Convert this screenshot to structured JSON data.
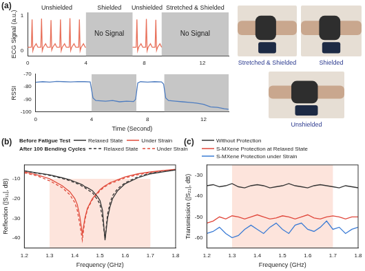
{
  "chart_data": [
    {
      "type": "line",
      "panel": "(a)",
      "y_label": "ECG Signal (a.u.)",
      "color": "#e8705a",
      "x": [
        0,
        0.25,
        0.3,
        0.35,
        0.42,
        0.58,
        0.7,
        0.9,
        0.95,
        1.0,
        1.07,
        1.23,
        1.35,
        1.55,
        1.6,
        1.65,
        1.72,
        1.88,
        2.0,
        2.2,
        2.25,
        2.3,
        2.37,
        2.53,
        2.65,
        2.85,
        2.9,
        2.95,
        3.02,
        3.18,
        3.3,
        3.5,
        3.55,
        3.6,
        3.67,
        3.83,
        3.95,
        4.0,
        5.6,
        7.2,
        7.45,
        7.5,
        7.55,
        7.62,
        7.78,
        7.9,
        8.1,
        8.15,
        8.2,
        8.27,
        8.43,
        8.55,
        8.75,
        8.8,
        8.85,
        8.92,
        9.08,
        9.2
      ],
      "values": [
        0.1,
        0.1,
        0.9,
        0.0,
        0.1,
        0.2,
        0.1,
        0.1,
        0.92,
        0.0,
        0.1,
        0.2,
        0.1,
        0.1,
        0.88,
        0.02,
        0.1,
        0.2,
        0.1,
        0.1,
        0.9,
        0.0,
        0.1,
        0.2,
        0.1,
        0.1,
        0.93,
        0.01,
        0.1,
        0.2,
        0.1,
        0.1,
        0.9,
        0.0,
        0.1,
        0.2,
        0.1,
        0.1,
        null,
        0.1,
        0.1,
        0.9,
        0.0,
        0.1,
        0.2,
        0.1,
        0.1,
        0.91,
        0.0,
        0.1,
        0.2,
        0.1,
        0.1,
        0.89,
        0.01,
        0.1,
        0.2,
        0.1
      ],
      "xlim": [
        0,
        13.8
      ],
      "xticks": [
        0,
        4,
        8,
        12
      ],
      "ylim": [
        -0.15,
        1.1
      ],
      "yticks": [
        0,
        1
      ],
      "grid": false,
      "segments": [
        {
          "start": 0,
          "end": 4,
          "label": "Unshielded"
        },
        {
          "start": 4,
          "end": 7.2,
          "label": "Shielded"
        },
        {
          "start": 7.2,
          "end": 9.2,
          "label": "Unshielded"
        },
        {
          "start": 9.2,
          "end": 13.8,
          "label": "Stretched & Shielded"
        }
      ],
      "regions": [
        {
          "start": 4,
          "end": 7.2,
          "label": "No Signal",
          "color": "#c6c6c6"
        },
        {
          "start": 9.2,
          "end": 13.8,
          "label": "No Signal",
          "color": "#c6c6c6"
        }
      ]
    },
    {
      "type": "line",
      "x_label": "Time (Second)",
      "y_label": "RSSI",
      "color": "#4d7cc0",
      "x": [
        0,
        0.5,
        1,
        1.5,
        2,
        2.5,
        3,
        3.5,
        3.9,
        4.1,
        4.3,
        5,
        5.5,
        6,
        6.5,
        7.0,
        7.15,
        7.3,
        7.5,
        8,
        8.5,
        9.0,
        9.15,
        9.3,
        9.5,
        10,
        10.5,
        11,
        11.5,
        12,
        12.5,
        13,
        13.5,
        13.8
      ],
      "values": [
        -76.5,
        -76,
        -76.3,
        -75.8,
        -76,
        -76.2,
        -75.9,
        -76,
        -76.2,
        -89,
        -91,
        -91.5,
        -91,
        -92,
        -91.5,
        -91.8,
        -90,
        -77,
        -76,
        -76.3,
        -76,
        -76.2,
        -78,
        -89,
        -91,
        -91.5,
        -92,
        -92.5,
        -93,
        -94,
        -96,
        -96.5,
        -97.5,
        -98
      ],
      "xlim": [
        0,
        13.8
      ],
      "xticks": [
        0,
        4,
        8,
        12
      ],
      "ylim": [
        -100,
        -70
      ],
      "yticks": [
        -100,
        -90,
        -80,
        -70
      ],
      "grid": false,
      "regions": [
        {
          "start": 4,
          "end": 7.2,
          "color": "#c6c6c6"
        },
        {
          "start": 9.2,
          "end": 13.8,
          "color": "#c6c6c6"
        }
      ]
    },
    {
      "type": "line",
      "panel": "(b)",
      "x_label": "Frequency (GHz)",
      "y_label": "Reflection (|S₁₁|, dB)",
      "annotations": [
        "Before Fatigue Test",
        "After 100 Bending Cycles"
      ],
      "x": [
        1.2,
        1.25,
        1.3,
        1.35,
        1.38,
        1.4,
        1.41,
        1.42,
        1.43,
        1.44,
        1.45,
        1.47,
        1.49,
        1.5,
        1.51,
        1.52,
        1.53,
        1.54,
        1.55,
        1.57,
        1.6,
        1.65,
        1.7,
        1.75,
        1.8
      ],
      "series": [
        {
          "name": "Relaxed State",
          "color": "#333333",
          "line_style": "solid",
          "values": [
            -6,
            -7,
            -8,
            -9.5,
            -10.5,
            -11.5,
            -12,
            -12.5,
            -13,
            -14,
            -14.5,
            -16,
            -19,
            -21,
            -26,
            -41,
            -30,
            -24,
            -20,
            -16,
            -12.5,
            -9.5,
            -7.5,
            -6.5,
            -5.5
          ]
        },
        {
          "name": "Under Strain",
          "color": "#e04a3a",
          "line_style": "solid",
          "values": [
            -6.5,
            -8,
            -10,
            -13.5,
            -16.5,
            -20,
            -23,
            -29,
            -38,
            -30,
            -25,
            -20,
            -17,
            -15.5,
            -14.5,
            -13.5,
            -12.8,
            -12,
            -11.5,
            -10.5,
            -9,
            -7.5,
            -6.5,
            -5.8,
            -5.2
          ]
        },
        {
          "name": "Relaxed State",
          "color": "#333333",
          "line_style": "dashed",
          "values": [
            -6,
            -7.2,
            -8.3,
            -9.8,
            -11,
            -12,
            -12.5,
            -13,
            -13.8,
            -14.5,
            -15.5,
            -17,
            -20.5,
            -23,
            -30,
            -40,
            -28,
            -22,
            -18.5,
            -15,
            -12,
            -9,
            -7.2,
            -6.3,
            -5.5
          ]
        },
        {
          "name": "Under Strain",
          "color": "#e04a3a",
          "line_style": "dashed",
          "values": [
            -7,
            -8.5,
            -11,
            -14.5,
            -18,
            -22,
            -26,
            -33,
            -41,
            -31,
            -25.5,
            -20.5,
            -17.5,
            -16,
            -15,
            -14,
            -13.2,
            -12.5,
            -12,
            -11,
            -9.5,
            -8,
            -6.8,
            -6,
            -5.5
          ]
        }
      ],
      "xlim": [
        1.2,
        1.8
      ],
      "xticks": [
        1.2,
        1.3,
        1.4,
        1.5,
        1.6,
        1.7,
        1.8
      ],
      "ylim": [
        -45,
        -3
      ],
      "yticks": [
        -40,
        -30,
        -20,
        -10
      ],
      "grid": false,
      "band": {
        "x": [
          1.3,
          1.7
        ],
        "y": [
          -45,
          -10
        ],
        "color": "#fde4dc"
      }
    },
    {
      "type": "line",
      "panel": "(c)",
      "x_label": "Frequency (GHz)",
      "y_label": "Transmission (|S₂₁|, dB)",
      "x": [
        1.2,
        1.225,
        1.25,
        1.275,
        1.3,
        1.325,
        1.35,
        1.375,
        1.4,
        1.425,
        1.45,
        1.475,
        1.5,
        1.525,
        1.55,
        1.575,
        1.6,
        1.625,
        1.65,
        1.675,
        1.7,
        1.725,
        1.75,
        1.775,
        1.8
      ],
      "series": [
        {
          "name": "Without Protection",
          "color": "#333333",
          "line_style": "solid",
          "values": [
            -35,
            -34.5,
            -35.5,
            -35,
            -34,
            -35.5,
            -36,
            -35,
            -34.5,
            -35,
            -36,
            -35.5,
            -35,
            -34,
            -35,
            -35.5,
            -36,
            -35,
            -34.5,
            -35,
            -35.5,
            -36,
            -35,
            -35.5,
            -36
          ]
        },
        {
          "name": "S-MXene Protection at Relaxed State",
          "color": "#e0463a",
          "line_style": "solid",
          "values": [
            -53,
            -52,
            -50,
            -51,
            -49.5,
            -50,
            -51,
            -50,
            -49,
            -50,
            -51,
            -50.5,
            -49.5,
            -50,
            -51,
            -50,
            -49,
            -50.5,
            -51,
            -50,
            -49.5,
            -50,
            -51,
            -50,
            -50
          ]
        },
        {
          "name": "S-MXene Protection under Strain",
          "color": "#3a7bd5",
          "line_style": "solid",
          "values": [
            -58,
            -57,
            -55,
            -58,
            -60,
            -59,
            -56,
            -54,
            -56,
            -58,
            -55,
            -53,
            -56,
            -58,
            -54,
            -53,
            -56,
            -57,
            -55,
            -52,
            -56,
            -55,
            -58,
            -56,
            -55
          ]
        }
      ],
      "xlim": [
        1.2,
        1.8
      ],
      "xticks": [
        1.2,
        1.3,
        1.4,
        1.5,
        1.6,
        1.7,
        1.8
      ],
      "ylim": [
        -65,
        -25
      ],
      "yticks": [
        -60,
        -50,
        -40,
        -30
      ],
      "grid": false,
      "band": {
        "x": [
          1.3,
          1.7
        ],
        "y": [
          -65,
          -25
        ],
        "color": "#fde4dc"
      }
    }
  ],
  "photos": {
    "labels": [
      "Stretched & Shielded",
      "Shielded",
      "Unshielded"
    ]
  }
}
